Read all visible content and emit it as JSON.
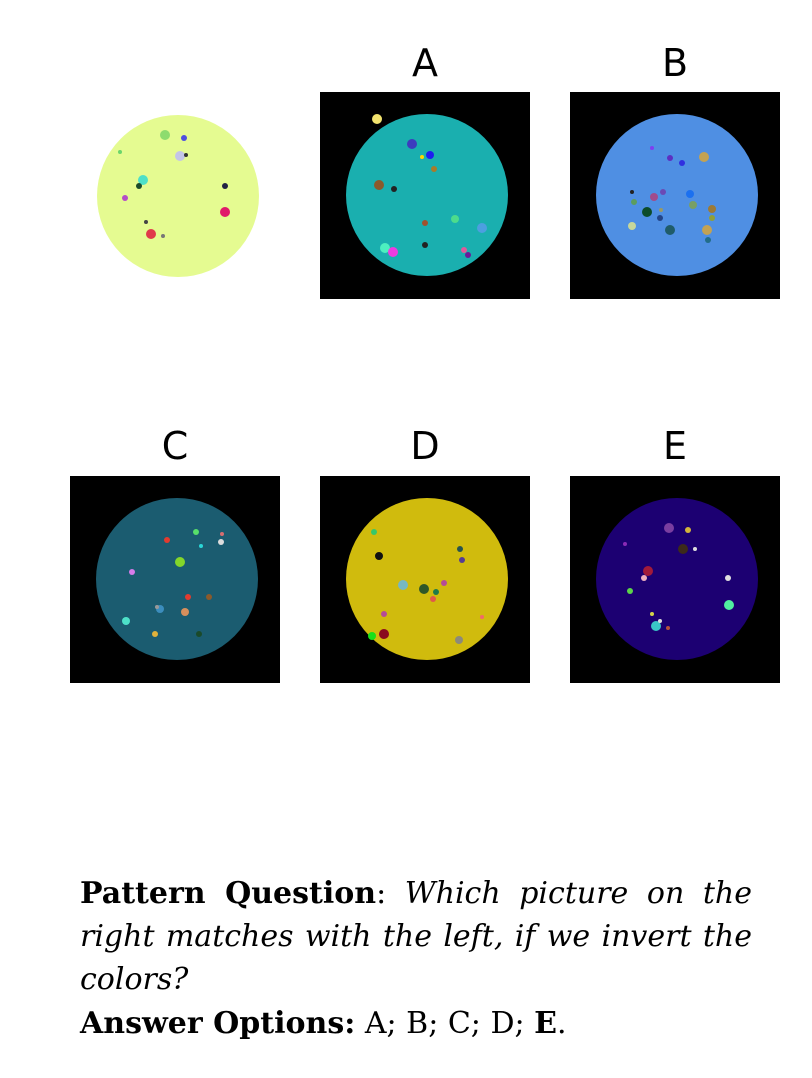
{
  "options": [
    {
      "label": "A",
      "bg": "#000000",
      "circle": "#1aafaf",
      "dots": [
        [
          55,
          22,
          5,
          "#f2e36e"
        ],
        [
          90,
          47,
          5,
          "#3c3cbe"
        ],
        [
          108,
          58,
          4,
          "#1e1ef0"
        ],
        [
          100,
          60,
          2,
          "#ffd700"
        ],
        [
          112,
          72,
          3,
          "#a87b2a"
        ],
        [
          57,
          88,
          5,
          "#8b5a2b"
        ],
        [
          72,
          92,
          3,
          "#222222"
        ],
        [
          133,
          122,
          4,
          "#4cdc8c"
        ],
        [
          160,
          131,
          5,
          "#4c9fe0"
        ],
        [
          103,
          126,
          3,
          "#a0522d"
        ],
        [
          63,
          151,
          5,
          "#4cf0c0"
        ],
        [
          71,
          155,
          5,
          "#ee3ce0"
        ],
        [
          103,
          148,
          3,
          "#222222"
        ],
        [
          142,
          153,
          3,
          "#e05a9a"
        ],
        [
          146,
          158,
          3,
          "#6a1b9a"
        ]
      ]
    },
    {
      "label": "B",
      "bg": "#000000",
      "circle": "#4f8fe3",
      "dots": [
        [
          132,
          60,
          5,
          "#c3a253"
        ],
        [
          98,
          61,
          3,
          "#5c2fc2"
        ],
        [
          110,
          66,
          3,
          "#3030e0"
        ],
        [
          80,
          51,
          2,
          "#7f3ff0"
        ],
        [
          91,
          95,
          3,
          "#6a4ab5"
        ],
        [
          82,
          100,
          4,
          "#a04c8c"
        ],
        [
          62,
          105,
          3,
          "#5c9d5e"
        ],
        [
          60,
          95,
          2,
          "#222222"
        ],
        [
          75,
          115,
          5,
          "#0c4c2a"
        ],
        [
          118,
          97,
          4,
          "#1b70f0"
        ],
        [
          121,
          108,
          4,
          "#789f66"
        ],
        [
          140,
          112,
          4,
          "#9c7a36"
        ],
        [
          140,
          121,
          3,
          "#8fa03a"
        ],
        [
          88,
          121,
          3,
          "#224488"
        ],
        [
          60,
          129,
          4,
          "#c7d79a"
        ],
        [
          98,
          133,
          5,
          "#1f5c6a"
        ],
        [
          135,
          133,
          5,
          "#c3a253"
        ],
        [
          136,
          143,
          3,
          "#226d8a"
        ],
        [
          89,
          113,
          2,
          "#999966"
        ]
      ]
    }
  ],
  "options_row2": [
    {
      "label": "C",
      "bg": "#000000",
      "circle": "#1b5c70",
      "dots": [
        [
          124,
          51,
          3,
          "#58e06a"
        ],
        [
          95,
          59,
          3,
          "#e23b2f"
        ],
        [
          149,
          61,
          3,
          "#dddddd"
        ],
        [
          150,
          53,
          2,
          "#d56e70"
        ],
        [
          129,
          65,
          2,
          "#2ad6d6"
        ],
        [
          108,
          81,
          5,
          "#84d62a"
        ],
        [
          60,
          91,
          3,
          "#d67cea"
        ],
        [
          137,
          116,
          3,
          "#8b5a2b"
        ],
        [
          116,
          116,
          3,
          "#e23b2f"
        ],
        [
          88,
          128,
          4,
          "#3c8dbd"
        ],
        [
          113,
          131,
          4,
          "#d68f5c"
        ],
        [
          54,
          140,
          4,
          "#4de0c8"
        ],
        [
          83,
          153,
          3,
          "#e0b23b"
        ],
        [
          127,
          153,
          3,
          "#1a4a2a"
        ],
        [
          85,
          126,
          2,
          "#999999"
        ]
      ]
    },
    {
      "label": "D",
      "bg": "#000000",
      "circle": "#d0bb0d",
      "dots": [
        [
          52,
          51,
          3,
          "#38c768"
        ],
        [
          138,
          68,
          3,
          "#27544e"
        ],
        [
          140,
          79,
          3,
          "#553d93"
        ],
        [
          57,
          75,
          4,
          "#111111"
        ],
        [
          81,
          104,
          5,
          "#77b8c2"
        ],
        [
          102,
          108,
          5,
          "#2f5728"
        ],
        [
          122,
          102,
          3,
          "#b54c97"
        ],
        [
          114,
          111,
          3,
          "#1f7a4a"
        ],
        [
          111,
          118,
          3,
          "#e0594a"
        ],
        [
          62,
          133,
          3,
          "#b54c97"
        ],
        [
          62,
          153,
          5,
          "#8a0b1e"
        ],
        [
          50,
          155,
          4,
          "#19e019"
        ],
        [
          137,
          159,
          4,
          "#8c8a7a"
        ],
        [
          160,
          136,
          2,
          "#f06a6a"
        ]
      ]
    },
    {
      "label": "E",
      "bg": "#000000",
      "circle": "#1c0072",
      "dots": [
        [
          97,
          47,
          5,
          "#7a3ea0"
        ],
        [
          116,
          49,
          3,
          "#d4b43c"
        ],
        [
          111,
          68,
          5,
          "#3c2a1a"
        ],
        [
          123,
          68,
          2,
          "#dddddd"
        ],
        [
          53,
          63,
          2,
          "#8a2ab5"
        ],
        [
          76,
          90,
          5,
          "#a11a3a"
        ],
        [
          72,
          97,
          3,
          "#f0b0c0"
        ],
        [
          58,
          110,
          3,
          "#5cd44a"
        ],
        [
          156,
          97,
          3,
          "#e0e0e0"
        ],
        [
          157,
          124,
          5,
          "#50f0a0"
        ],
        [
          80,
          133,
          2,
          "#d4d44a"
        ],
        [
          84,
          145,
          5,
          "#3ac7c7"
        ],
        [
          96,
          147,
          2,
          "#b5503c"
        ],
        [
          88,
          140,
          2,
          "#dddddd"
        ]
      ]
    }
  ],
  "reference": {
    "circle": "#e5fb91",
    "dots": [
      [
        71,
        23,
        5,
        "#8edc6e"
      ],
      [
        90,
        26,
        3,
        "#4f4fe0"
      ],
      [
        86,
        44,
        5,
        "#c4c5e8"
      ],
      [
        92,
        43,
        2,
        "#333333"
      ],
      [
        26,
        40,
        2,
        "#6bd66b"
      ],
      [
        49,
        68,
        5,
        "#4de0c8"
      ],
      [
        45,
        74,
        3,
        "#1a4a2a"
      ],
      [
        131,
        74,
        3,
        "#222244"
      ],
      [
        31,
        86,
        3,
        "#b54cc8"
      ],
      [
        131,
        100,
        5,
        "#e01a6a"
      ],
      [
        52,
        110,
        2,
        "#444444"
      ],
      [
        57,
        122,
        5,
        "#e03a4a"
      ],
      [
        69,
        124,
        2,
        "#777777"
      ]
    ]
  },
  "question": {
    "title": "Pattern Question",
    "colon": ":",
    "text": "Which picture on the right matches with the left, if we invert the colors?"
  },
  "answers": {
    "title": "Answer Options:",
    "list": "A; B; C; D;",
    "highlight": "E",
    "end": "."
  }
}
